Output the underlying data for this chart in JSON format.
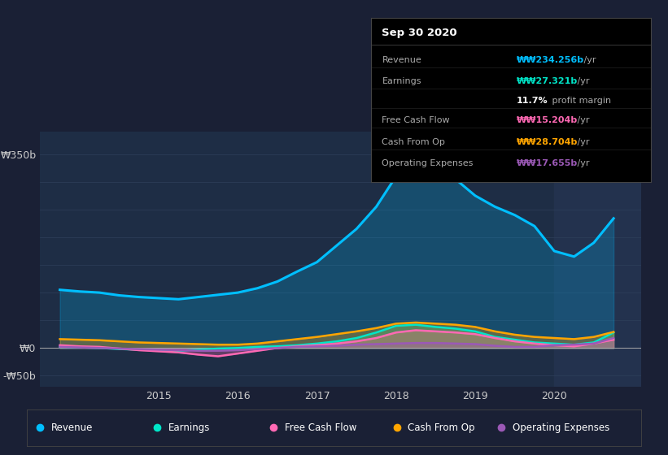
{
  "background_color": "#1a2035",
  "plot_bg_color": "#1e2d45",
  "highlight_bg": "#243350",
  "colors": {
    "revenue": "#00bfff",
    "earnings": "#00e5c8",
    "free_cash_flow": "#ff69b4",
    "cash_from_op": "#ffa500",
    "operating_expenses": "#9b59b6"
  },
  "legend_labels": [
    "Revenue",
    "Earnings",
    "Free Cash Flow",
    "Cash From Op",
    "Operating Expenses"
  ],
  "tooltip_title": "Sep 30 2020",
  "tooltip_rows": [
    {
      "label": "Revenue",
      "value": "₩₩234.256b",
      "suffix": " /yr",
      "color": "#00bfff"
    },
    {
      "label": "Earnings",
      "value": "₩₩27.321b",
      "suffix": " /yr",
      "color": "#00e5c8"
    },
    {
      "label": "",
      "value": "11.7%",
      "suffix": " profit margin",
      "color": "#ffffff"
    },
    {
      "label": "Free Cash Flow",
      "value": "₩₩15.204b",
      "suffix": " /yr",
      "color": "#ff69b4"
    },
    {
      "label": "Cash From Op",
      "value": "₩₩28.704b",
      "suffix": " /yr",
      "color": "#ffa500"
    },
    {
      "label": "Operating Expenses",
      "value": "₩₩17.655b",
      "suffix": " /yr",
      "color": "#9b59b6"
    }
  ],
  "t": [
    2013.75,
    2014.0,
    2014.25,
    2014.5,
    2014.75,
    2015.0,
    2015.25,
    2015.5,
    2015.75,
    2016.0,
    2016.25,
    2016.5,
    2016.75,
    2017.0,
    2017.25,
    2017.5,
    2017.75,
    2018.0,
    2018.25,
    2018.5,
    2018.75,
    2019.0,
    2019.25,
    2019.5,
    2019.75,
    2020.0,
    2020.25,
    2020.5,
    2020.75
  ],
  "revenue": [
    105,
    102,
    100,
    95,
    92,
    90,
    88,
    92,
    96,
    100,
    108,
    120,
    138,
    155,
    185,
    215,
    255,
    310,
    320,
    315,
    305,
    275,
    255,
    240,
    220,
    175,
    165,
    190,
    234
  ],
  "earnings": [
    2,
    1,
    0,
    -2,
    -3,
    -4,
    -5,
    -3,
    -1,
    0,
    2,
    3,
    5,
    8,
    12,
    18,
    28,
    40,
    42,
    38,
    35,
    30,
    20,
    15,
    10,
    8,
    6,
    10,
    28
  ],
  "free_cash_flow": [
    5,
    3,
    2,
    -1,
    -4,
    -6,
    -8,
    -12,
    -15,
    -10,
    -5,
    0,
    3,
    5,
    8,
    12,
    18,
    28,
    32,
    30,
    28,
    25,
    18,
    12,
    8,
    5,
    3,
    8,
    15
  ],
  "cash_from_op": [
    16,
    15,
    14,
    12,
    10,
    9,
    8,
    7,
    6,
    6,
    8,
    12,
    16,
    20,
    25,
    30,
    36,
    44,
    46,
    44,
    42,
    38,
    30,
    24,
    20,
    18,
    16,
    20,
    29
  ],
  "operating_expenses": [
    2,
    1,
    0,
    -1,
    -2,
    -3,
    -4,
    -5,
    -5,
    -4,
    -2,
    0,
    2,
    3,
    4,
    6,
    7,
    8,
    9,
    9,
    8,
    7,
    4,
    2,
    2,
    5,
    6,
    8,
    18
  ],
  "xlim": [
    2013.5,
    2021.1
  ],
  "ylim": [
    -70,
    390
  ],
  "xticks": [
    2015,
    2016,
    2017,
    2018,
    2019,
    2020
  ],
  "yticks": [
    350,
    0,
    -50
  ],
  "ytick_labels": [
    "₩350b",
    "₩0",
    "-₩50b"
  ],
  "highlight_start": 2020.0,
  "highlight_end": 2021.2
}
